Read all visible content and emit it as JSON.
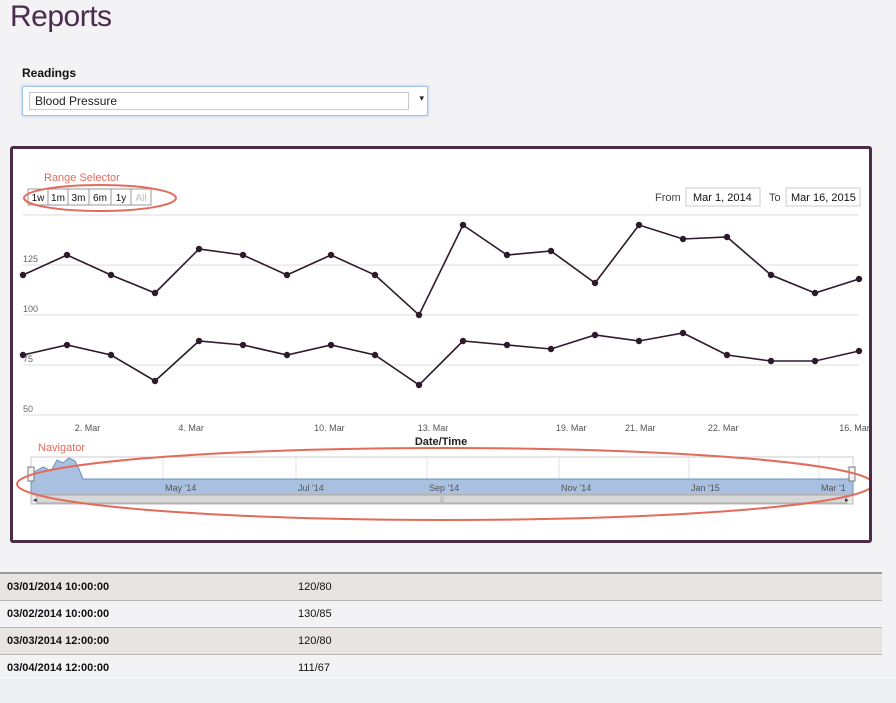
{
  "page": {
    "title": "Reports"
  },
  "readings": {
    "label": "Readings",
    "selected": "Blood Pressure"
  },
  "range_selector": {
    "annotation": "Range Selector",
    "buttons": [
      "1w",
      "1m",
      "3m",
      "6m",
      "1y",
      "All"
    ],
    "from_label": "From",
    "from_value": "Mar 1, 2014",
    "to_label": "To",
    "to_value": "Mar 16, 2015"
  },
  "navigator": {
    "annotation": "Navigator",
    "labels": [
      "May '14",
      "Jul '14",
      "Sep '14",
      "Nov '14",
      "Jan '15",
      "Mar '1"
    ],
    "fill_color": "#a9c0e0"
  },
  "chart_data": {
    "type": "line",
    "xlabel": "Date/Time",
    "x_tick_labels": [
      "2. Mar",
      "4. Mar",
      "10. Mar",
      "13. Mar",
      "19. Mar",
      "21. Mar",
      "22. Mar",
      "16. Mar"
    ],
    "y_tick_labels": [
      "125",
      "100",
      "75",
      "50"
    ],
    "ylim": [
      50,
      150
    ],
    "series": [
      {
        "values": [
          120,
          130,
          120,
          111,
          133,
          130,
          120,
          130,
          120,
          100,
          145,
          130,
          132,
          116,
          145,
          138,
          139,
          120,
          111,
          118
        ]
      },
      {
        "values": [
          80,
          85,
          80,
          67,
          87,
          85,
          80,
          85,
          80,
          65,
          87,
          85,
          83,
          90,
          87,
          91,
          80,
          77,
          77,
          82
        ]
      }
    ],
    "line_color": "#2d1a2b",
    "grid": true
  },
  "table": {
    "rows": [
      {
        "date": "03/01/2014 10:00:00",
        "value": "120/80"
      },
      {
        "date": "03/02/2014 10:00:00",
        "value": "130/85"
      },
      {
        "date": "03/03/2014 12:00:00",
        "value": "120/80"
      },
      {
        "date": "03/04/2014 12:00:00",
        "value": "111/67"
      }
    ]
  }
}
